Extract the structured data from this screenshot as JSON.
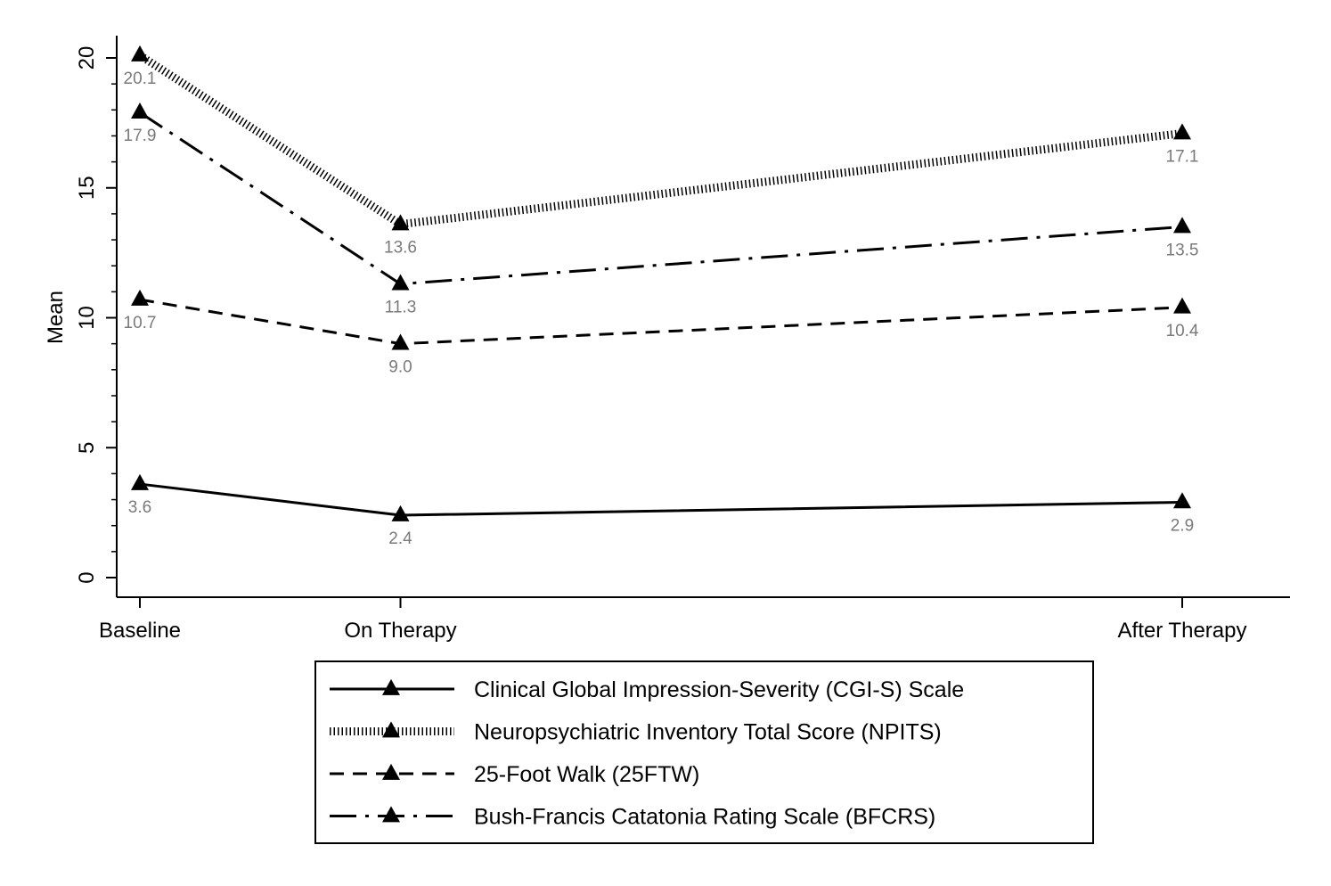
{
  "chart_data": {
    "type": "line",
    "title": "",
    "xlabel": "",
    "ylabel": "Mean",
    "categories": [
      "Baseline",
      "On Therapy",
      "After Therapy"
    ],
    "x": [
      0,
      1,
      4
    ],
    "ylim": [
      0,
      20
    ],
    "yticks": [
      0,
      5,
      10,
      15,
      20
    ],
    "yticks_minor": [
      1,
      2,
      3,
      4,
      6,
      7,
      8,
      9,
      11,
      12,
      13,
      14,
      16,
      17,
      18,
      19
    ],
    "grid": false,
    "legend_position": "bottom",
    "marker": "triangle",
    "series": [
      {
        "key": "cgis",
        "name": "Clinical Global Impression-Severity (CGI-S) Scale",
        "values": [
          3.6,
          2.4,
          2.9
        ],
        "labels": [
          "3.6",
          "2.4",
          "2.9"
        ],
        "style": "solid"
      },
      {
        "key": "npits",
        "name": "Neuropsychiatric Inventory Total Score (NPITS)",
        "values": [
          20.1,
          13.6,
          17.1
        ],
        "labels": [
          "20.1",
          "13.6",
          "17.1"
        ],
        "style": "dotted"
      },
      {
        "key": "ftw",
        "name": "25-Foot Walk (25FTW)",
        "values": [
          10.7,
          9.0,
          10.4
        ],
        "labels": [
          "10.7",
          "9.0",
          "10.4"
        ],
        "style": "dashed"
      },
      {
        "key": "bfcrs",
        "name": "Bush-Francis Catatonia Rating Scale (BFCRS)",
        "values": [
          17.9,
          11.3,
          13.5
        ],
        "labels": [
          "17.9",
          "11.3",
          "13.5"
        ],
        "style": "dash-dot"
      }
    ]
  }
}
